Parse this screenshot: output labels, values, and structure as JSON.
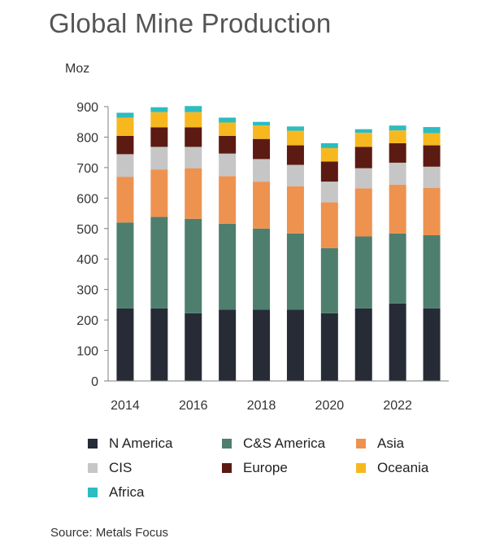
{
  "chart_data": {
    "type": "bar",
    "stacked": true,
    "title": "Global Mine Production",
    "ylabel": "Moz",
    "xlabel": "",
    "ylim": [
      0,
      900
    ],
    "yticks": [
      "0",
      "100",
      "200",
      "300",
      "400",
      "500",
      "600",
      "700",
      "800",
      "900"
    ],
    "categories": [
      "2014",
      "2015",
      "2016",
      "2017",
      "2018",
      "2019",
      "2020",
      "2021",
      "2022",
      "2023"
    ],
    "xtick_labels": [
      "2014",
      "2016",
      "2018",
      "2020",
      "2022"
    ],
    "grid": false,
    "legend_position": "bottom",
    "series": [
      {
        "name": "N America",
        "color": "#262b36",
        "values": [
          238,
          238,
          222,
          234,
          234,
          234,
          222,
          238,
          254,
          238
        ]
      },
      {
        "name": "C&S America",
        "color": "#4e7e6e",
        "values": [
          282,
          300,
          310,
          282,
          266,
          250,
          214,
          236,
          230,
          240
        ]
      },
      {
        "name": "Asia",
        "color": "#ee9250",
        "values": [
          150,
          156,
          166,
          156,
          154,
          155,
          150,
          158,
          160,
          155
        ]
      },
      {
        "name": "CIS",
        "color": "#c6c6c6",
        "values": [
          74,
          74,
          70,
          74,
          74,
          70,
          68,
          66,
          72,
          70
        ]
      },
      {
        "name": "Europe",
        "color": "#5b1a12",
        "values": [
          60,
          64,
          64,
          58,
          66,
          64,
          66,
          70,
          64,
          70
        ]
      },
      {
        "name": "Oceania",
        "color": "#f7b81f",
        "values": [
          60,
          50,
          50,
          44,
          44,
          48,
          44,
          46,
          42,
          40
        ]
      },
      {
        "name": "Africa",
        "color": "#2dbcc0",
        "values": [
          16,
          16,
          20,
          16,
          12,
          14,
          16,
          12,
          16,
          20
        ]
      }
    ]
  },
  "source": "Source: Metals Focus"
}
